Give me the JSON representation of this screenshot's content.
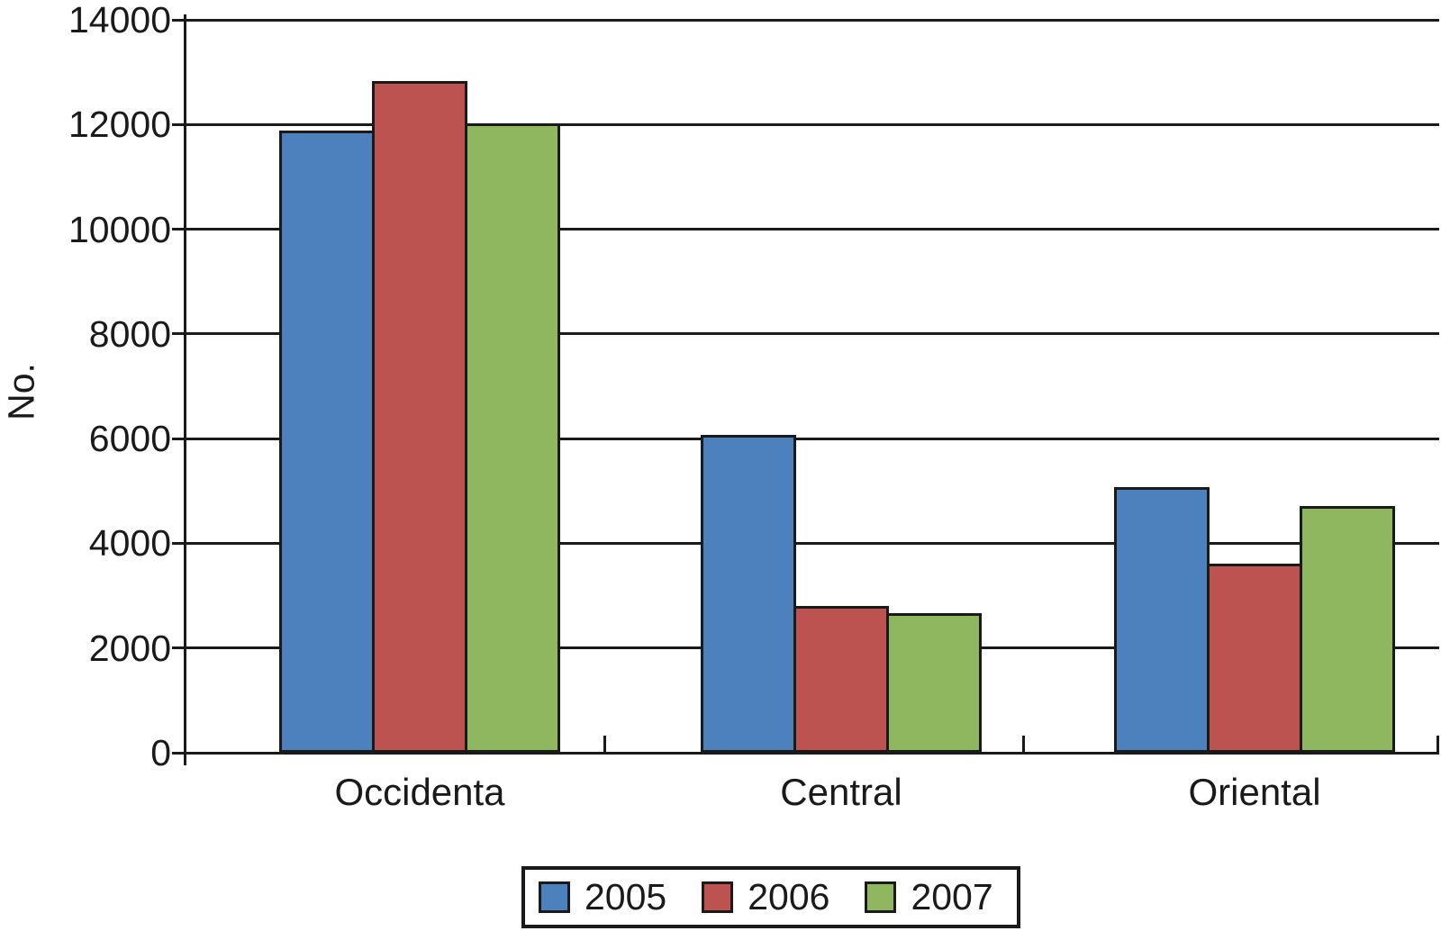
{
  "chart_data": {
    "type": "bar",
    "title": "",
    "categories": [
      "Occidenta",
      "Central",
      "Oriental"
    ],
    "series": [
      {
        "name": "2005",
        "color": "#4D81BD",
        "values": [
          11880,
          6070,
          5070
        ]
      },
      {
        "name": "2006",
        "color": "#BD5351",
        "values": [
          12830,
          2810,
          3620
        ]
      },
      {
        "name": "2007",
        "color": "#8FB75F",
        "values": [
          12030,
          2660,
          4710
        ]
      }
    ],
    "xlabel": "",
    "ylabel": "No.",
    "ylim": [
      0,
      14000
    ],
    "ytick_step": 2000,
    "ytick_labels": [
      "0",
      "2000",
      "4000",
      "6000",
      "8000",
      "10000",
      "12000",
      "14000"
    ],
    "grid": "horizontal",
    "legend_position": "bottom",
    "axis_color": "#1a1a1a",
    "bar_border_color": "#1a1a1a"
  }
}
